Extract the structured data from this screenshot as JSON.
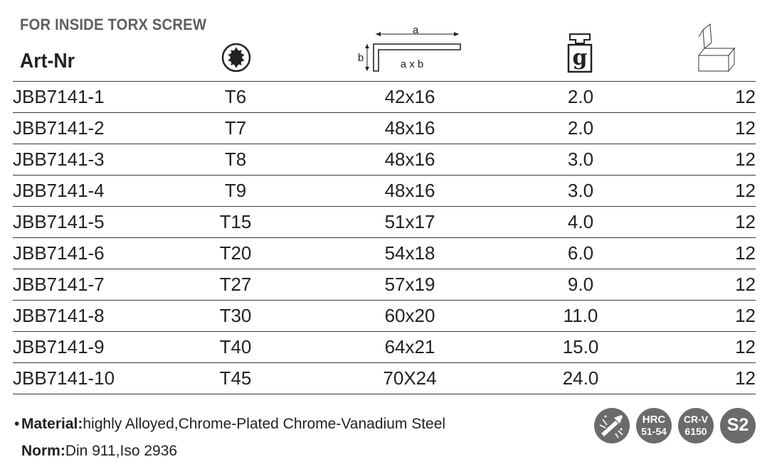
{
  "title": "FOR INSIDE TORX SCREW",
  "header": {
    "art_label": "Art-Nr",
    "dim_a": "a",
    "dim_b": "b",
    "dim_axb": "a x b",
    "weight_letter": "g"
  },
  "rows": [
    {
      "art": "JBB7141-1",
      "torx": "T6",
      "dim": "42x16",
      "weight": "2.0",
      "qty": "12"
    },
    {
      "art": "JBB7141-2",
      "torx": "T7",
      "dim": "48x16",
      "weight": "2.0",
      "qty": "12"
    },
    {
      "art": "JBB7141-3",
      "torx": "T8",
      "dim": "48x16",
      "weight": "3.0",
      "qty": "12"
    },
    {
      "art": "JBB7141-4",
      "torx": "T9",
      "dim": "48x16",
      "weight": "3.0",
      "qty": "12"
    },
    {
      "art": "JBB7141-5",
      "torx": "T15",
      "dim": "51x17",
      "weight": "4.0",
      "qty": "12"
    },
    {
      "art": "JBB7141-6",
      "torx": "T20",
      "dim": "54x18",
      "weight": "6.0",
      "qty": "12"
    },
    {
      "art": "JBB7141-7",
      "torx": "T27",
      "dim": "57x19",
      "weight": "9.0",
      "qty": "12"
    },
    {
      "art": "JBB7141-8",
      "torx": "T30",
      "dim": "60x20",
      "weight": "11.0",
      "qty": "12"
    },
    {
      "art": "JBB7141-9",
      "torx": "T40",
      "dim": "64x21",
      "weight": "15.0",
      "qty": "12"
    },
    {
      "art": "JBB7141-10",
      "torx": "T45",
      "dim": "70X24",
      "weight": "24.0",
      "qty": "12"
    }
  ],
  "notes": {
    "material_label": "Material:",
    "material_value": "highly Alloyed,Chrome-Plated Chrome-Vanadium Steel",
    "norm_label": "Norm:",
    "norm_value": "Din 911,Iso 2936"
  },
  "badges": {
    "hrc_top": "HRC",
    "hrc_bottom": "51-54",
    "crv_top": "CR-V",
    "crv_bottom": "6150",
    "s2": "S2"
  },
  "icons": {
    "torx_column": "torx-star-icon",
    "dimension_column": "l-key-dimension-icon",
    "weight_column": "weight-icon",
    "quantity_column": "box-icon",
    "badge_first": "tool-sparks-icon"
  },
  "colors": {
    "text": "#222222",
    "title": "#5f5f5f",
    "badge": "#6b6b6b"
  }
}
